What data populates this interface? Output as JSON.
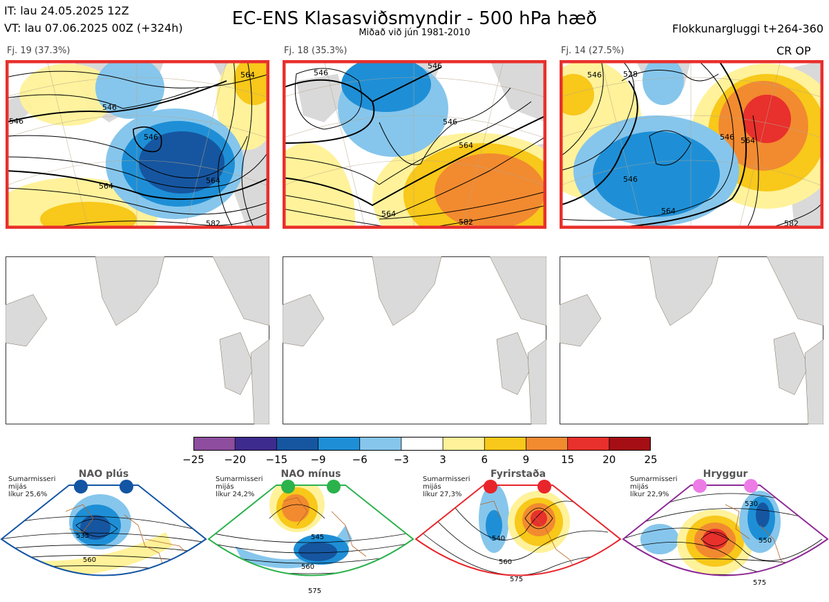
{
  "header": {
    "it": "IT: lau 24.05.2025 12Z",
    "vt": "VT: lau 07.06.2025 00Z  (+324h)",
    "title": "EC-ENS Klasasviðsmyndir - 500 hPa hæð",
    "subtitle": "Miðað við jún 1981-2010",
    "window": "Flokkunargluggi t+264-360",
    "op_label": "CR OP"
  },
  "clusters": [
    {
      "label": "Fj. 19 (37.3%)",
      "contours": [
        "546",
        "546",
        "546",
        "564",
        "564",
        "564",
        "582"
      ]
    },
    {
      "label": "Fj. 18 (35.3%)",
      "contours": [
        "546",
        "546",
        "546",
        "564",
        "564",
        "582"
      ]
    },
    {
      "label": "Fj. 14 (27.5%)",
      "contours": [
        "528",
        "546",
        "546",
        "546",
        "564",
        "564",
        "582"
      ]
    }
  ],
  "colorbar": {
    "colors": [
      "#8e4d9e",
      "#3e2b8e",
      "#1656a0",
      "#1e8fd6",
      "#86c6ec",
      "#ffffff",
      "#fff29a",
      "#f8c81a",
      "#f28a30",
      "#e8302c",
      "#a40e14"
    ],
    "ticks": [
      "−25",
      "−20",
      "−15",
      "−9",
      "−6",
      "−3",
      "3",
      "6",
      "9",
      "15",
      "20",
      "25"
    ]
  },
  "regimes": [
    {
      "title": "NAO plús",
      "prob": [
        "Sumarmisseri",
        "mijás",
        "líkur 25,6%"
      ],
      "color": "#1255a3",
      "contours": [
        "535",
        "560"
      ]
    },
    {
      "title": "NAO mínus",
      "prob": [
        "Sumarmisseri",
        "mijás",
        "líkur 24,2%"
      ],
      "color": "#2bb24c",
      "contours": [
        "545",
        "560",
        "575"
      ]
    },
    {
      "title": "Fyrirstaða",
      "prob": [
        "Sumarmisseri",
        "mijás",
        "líkur 27,3%"
      ],
      "color": "#e8252b",
      "contours": [
        "540",
        "560",
        "575"
      ]
    },
    {
      "title": "Hryggur",
      "prob": [
        "Sumarmisseri",
        "mijás",
        "líkur 22,9%"
      ],
      "color": "#8e2a96",
      "contours": [
        "530",
        "550",
        "575"
      ]
    }
  ]
}
